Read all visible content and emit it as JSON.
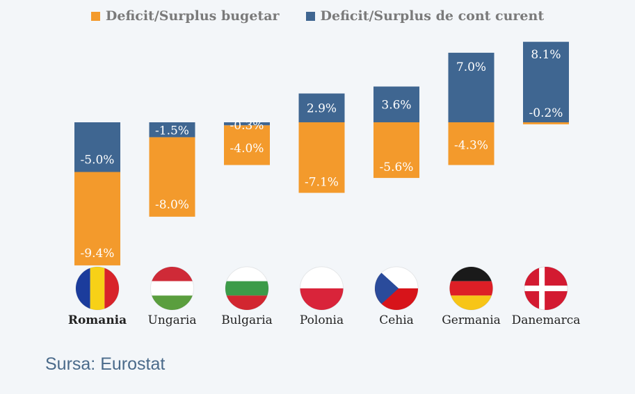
{
  "legend": {
    "budget_label": "Deficit/Surplus bugetar",
    "current_label": "Deficit/Surplus de cont curent"
  },
  "source": "Sursa: Eurostat",
  "colors": {
    "budget": "#f39a2c",
    "current": "#3f6691",
    "background": "#f3f6f9"
  },
  "chart_data": {
    "type": "bar",
    "stacked": true,
    "categories": [
      "Romania",
      "Ungaria",
      "Bulgaria",
      "Polonia",
      "Cehia",
      "Germania",
      "Danemarca"
    ],
    "highlight_category": "Romania",
    "series": [
      {
        "name": "Deficit/Surplus bugetar",
        "values": [
          -9.4,
          -8.0,
          -4.0,
          -7.1,
          -5.6,
          -4.3,
          -0.2
        ],
        "labels": [
          "-9.4%",
          "-8.0%",
          "-4.0%",
          "-7.1%",
          "-5.6%",
          "-4.3%",
          "-0.2%"
        ]
      },
      {
        "name": "Deficit/Surplus de cont curent",
        "values": [
          -5.0,
          -1.5,
          -0.3,
          2.9,
          3.6,
          7.0,
          8.1
        ],
        "labels": [
          "-5.0%",
          "-1.5%",
          "-0.3%",
          "2.9%",
          "3.6%",
          "7.0%",
          "8.1%"
        ]
      }
    ],
    "flags": [
      "romania-flag-icon",
      "hungary-flag-icon",
      "bulgaria-flag-icon",
      "poland-flag-icon",
      "czechia-flag-icon",
      "germany-flag-icon",
      "denmark-flag-icon"
    ],
    "legend_position": "top-center",
    "grid": false,
    "unit": "%"
  }
}
